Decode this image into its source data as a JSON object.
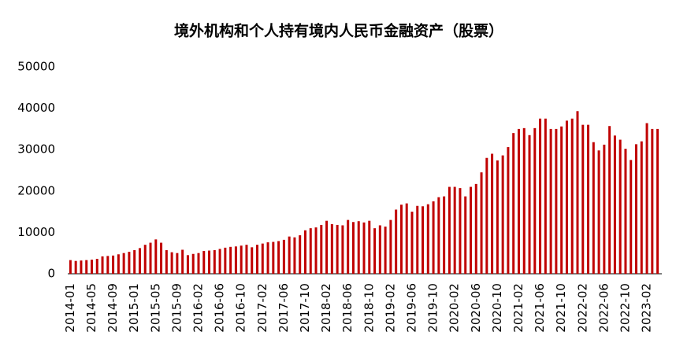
{
  "chart_data": {
    "type": "bar",
    "title": "境外机构和个人持有境内人民币金融资产（股票）",
    "color": "#c00000",
    "ylim": [
      0,
      50000
    ],
    "yticks": [
      0,
      10000,
      20000,
      30000,
      40000,
      50000
    ],
    "grid": false,
    "categories": [
      "2014-01",
      null,
      null,
      null,
      "2014-05",
      null,
      null,
      null,
      "2014-09",
      null,
      null,
      null,
      "2015-01",
      null,
      null,
      null,
      "2015-05",
      null,
      null,
      null,
      "2015-09",
      null,
      null,
      null,
      "2016-02",
      null,
      null,
      null,
      "2016-06",
      null,
      null,
      null,
      "2016-10",
      null,
      null,
      null,
      "2017-02",
      null,
      null,
      null,
      "2017-06",
      null,
      null,
      null,
      "2017-10",
      null,
      null,
      null,
      "2018-02",
      null,
      null,
      null,
      "2018-06",
      null,
      null,
      null,
      "2018-10",
      null,
      null,
      null,
      "2019-02",
      null,
      null,
      null,
      "2019-06",
      null,
      null,
      null,
      "2019-10",
      null,
      null,
      null,
      "2020-02",
      null,
      null,
      null,
      "2020-06",
      null,
      null,
      null,
      "2020-10",
      null,
      null,
      null,
      "2021-02",
      null,
      null,
      null,
      "2021-06",
      null,
      null,
      null,
      "2021-10",
      null,
      null,
      null,
      "2022-02",
      null,
      null,
      null,
      "2022-06",
      null,
      null,
      null,
      "2022-10",
      null,
      null,
      null,
      "2023-02",
      null,
      null
    ],
    "values": [
      3300,
      3100,
      3200,
      3300,
      3400,
      3600,
      4200,
      4300,
      4400,
      4700,
      5000,
      5300,
      5700,
      6200,
      7000,
      7500,
      8300,
      7500,
      5700,
      5200,
      5000,
      5800,
      4500,
      4800,
      5000,
      5500,
      5600,
      5700,
      6000,
      6300,
      6500,
      6600,
      6800,
      7000,
      6400,
      7000,
      7300,
      7600,
      7700,
      7900,
      8200,
      9000,
      8800,
      9300,
      10500,
      11000,
      11200,
      11800,
      12800,
      12000,
      11800,
      11700,
      13000,
      12500,
      12700,
      12400,
      12800,
      11000,
      11700,
      11400,
      13000,
      15500,
      16700,
      17000,
      15000,
      16400,
      16300,
      16800,
      17500,
      18500,
      18700,
      21000,
      21000,
      20700,
      18700,
      21000,
      21700,
      24500,
      28000,
      29000,
      27400,
      28600,
      30600,
      34000,
      35000,
      35200,
      33500,
      35200,
      37500,
      37500,
      35000,
      35000,
      35600,
      37000,
      37500,
      39300,
      36000,
      36000,
      31800,
      29800,
      31200,
      35700,
      33400,
      32400,
      30200,
      27500,
      31300,
      32000,
      36400,
      35000,
      35000
    ]
  }
}
